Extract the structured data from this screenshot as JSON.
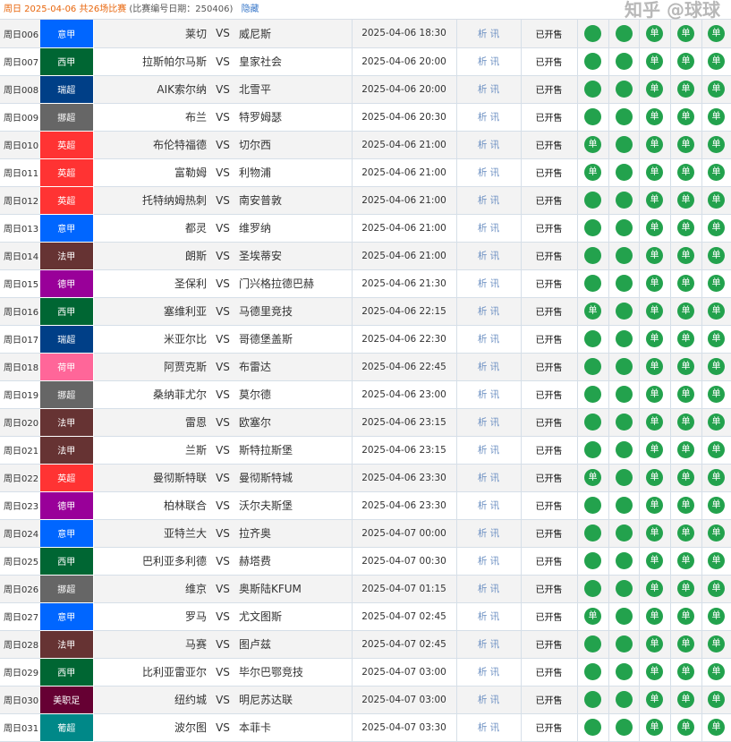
{
  "header": {
    "date_text": "周日 2025-04-06 共26场比赛",
    "issue_text": "(比赛编号日期：250406)",
    "hide_link": "隐藏"
  },
  "vs_label": "VS",
  "analysis_label": "析 讯",
  "status_label": "已开售",
  "single_label": "单",
  "league_colors": {
    "意甲": "#0066ff",
    "西甲": "#006633",
    "瑞超": "#003f87",
    "挪超": "#666666",
    "英超": "#ff3333",
    "法甲": "#663333",
    "德甲": "#990099",
    "荷甲": "#ff6699",
    "美职足": "#660033",
    "葡超": "#008888"
  },
  "circle_color": "#23a24d",
  "matches": [
    {
      "id": "周日006",
      "league": "意甲",
      "home": "莱切",
      "away": "威尼斯",
      "time": "2025-04-06 18:30",
      "single": [
        false,
        false,
        true,
        true,
        true
      ]
    },
    {
      "id": "周日007",
      "league": "西甲",
      "home": "拉斯帕尔马斯",
      "away": "皇家社会",
      "time": "2025-04-06 20:00",
      "single": [
        false,
        false,
        true,
        true,
        true
      ]
    },
    {
      "id": "周日008",
      "league": "瑞超",
      "home": "AIK索尔纳",
      "away": "北雪平",
      "time": "2025-04-06 20:00",
      "single": [
        false,
        false,
        true,
        true,
        true
      ]
    },
    {
      "id": "周日009",
      "league": "挪超",
      "home": "布兰",
      "away": "特罗姆瑟",
      "time": "2025-04-06 20:30",
      "single": [
        false,
        false,
        true,
        true,
        true
      ]
    },
    {
      "id": "周日010",
      "league": "英超",
      "home": "布伦特福德",
      "away": "切尔西",
      "time": "2025-04-06 21:00",
      "single": [
        true,
        false,
        true,
        true,
        true
      ]
    },
    {
      "id": "周日011",
      "league": "英超",
      "home": "富勒姆",
      "away": "利物浦",
      "time": "2025-04-06 21:00",
      "single": [
        true,
        false,
        true,
        true,
        true
      ]
    },
    {
      "id": "周日012",
      "league": "英超",
      "home": "托特纳姆热刺",
      "away": "南安普敦",
      "time": "2025-04-06 21:00",
      "single": [
        false,
        false,
        true,
        true,
        true
      ]
    },
    {
      "id": "周日013",
      "league": "意甲",
      "home": "都灵",
      "away": "维罗纳",
      "time": "2025-04-06 21:00",
      "single": [
        false,
        false,
        true,
        true,
        true
      ]
    },
    {
      "id": "周日014",
      "league": "法甲",
      "home": "朗斯",
      "away": "圣埃蒂安",
      "time": "2025-04-06 21:00",
      "single": [
        false,
        false,
        true,
        true,
        true
      ]
    },
    {
      "id": "周日015",
      "league": "德甲",
      "home": "圣保利",
      "away": "门兴格拉德巴赫",
      "time": "2025-04-06 21:30",
      "single": [
        false,
        false,
        true,
        true,
        true
      ]
    },
    {
      "id": "周日016",
      "league": "西甲",
      "home": "塞维利亚",
      "away": "马德里竞技",
      "time": "2025-04-06 22:15",
      "single": [
        true,
        false,
        true,
        true,
        true
      ]
    },
    {
      "id": "周日017",
      "league": "瑞超",
      "home": "米亚尔比",
      "away": "哥德堡盖斯",
      "time": "2025-04-06 22:30",
      "single": [
        false,
        false,
        true,
        true,
        true
      ]
    },
    {
      "id": "周日018",
      "league": "荷甲",
      "home": "阿贾克斯",
      "away": "布雷达",
      "time": "2025-04-06 22:45",
      "single": [
        false,
        false,
        true,
        true,
        true
      ]
    },
    {
      "id": "周日019",
      "league": "挪超",
      "home": "桑纳菲尤尔",
      "away": "莫尔德",
      "time": "2025-04-06 23:00",
      "single": [
        false,
        false,
        true,
        true,
        true
      ]
    },
    {
      "id": "周日020",
      "league": "法甲",
      "home": "雷恩",
      "away": "欧塞尔",
      "time": "2025-04-06 23:15",
      "single": [
        false,
        false,
        true,
        true,
        true
      ]
    },
    {
      "id": "周日021",
      "league": "法甲",
      "home": "兰斯",
      "away": "斯特拉斯堡",
      "time": "2025-04-06 23:15",
      "single": [
        false,
        false,
        true,
        true,
        true
      ]
    },
    {
      "id": "周日022",
      "league": "英超",
      "home": "曼彻斯特联",
      "away": "曼彻斯特城",
      "time": "2025-04-06 23:30",
      "single": [
        true,
        false,
        true,
        true,
        true
      ]
    },
    {
      "id": "周日023",
      "league": "德甲",
      "home": "柏林联合",
      "away": "沃尔夫斯堡",
      "time": "2025-04-06 23:30",
      "single": [
        false,
        false,
        true,
        true,
        true
      ]
    },
    {
      "id": "周日024",
      "league": "意甲",
      "home": "亚特兰大",
      "away": "拉齐奥",
      "time": "2025-04-07 00:00",
      "single": [
        false,
        false,
        true,
        true,
        true
      ]
    },
    {
      "id": "周日025",
      "league": "西甲",
      "home": "巴利亚多利德",
      "away": "赫塔费",
      "time": "2025-04-07 00:30",
      "single": [
        false,
        false,
        true,
        true,
        true
      ]
    },
    {
      "id": "周日026",
      "league": "挪超",
      "home": "维京",
      "away": "奥斯陆KFUM",
      "time": "2025-04-07 01:15",
      "single": [
        false,
        false,
        true,
        true,
        true
      ]
    },
    {
      "id": "周日027",
      "league": "意甲",
      "home": "罗马",
      "away": "尤文图斯",
      "time": "2025-04-07 02:45",
      "single": [
        true,
        false,
        true,
        true,
        true
      ]
    },
    {
      "id": "周日028",
      "league": "法甲",
      "home": "马赛",
      "away": "图卢兹",
      "time": "2025-04-07 02:45",
      "single": [
        false,
        false,
        true,
        true,
        true
      ]
    },
    {
      "id": "周日029",
      "league": "西甲",
      "home": "比利亚雷亚尔",
      "away": "毕尔巴鄂竞技",
      "time": "2025-04-07 03:00",
      "single": [
        false,
        false,
        true,
        true,
        true
      ]
    },
    {
      "id": "周日030",
      "league": "美职足",
      "home": "纽约城",
      "away": "明尼苏达联",
      "time": "2025-04-07 03:00",
      "single": [
        false,
        false,
        true,
        true,
        true
      ]
    },
    {
      "id": "周日031",
      "league": "葡超",
      "home": "波尔图",
      "away": "本菲卡",
      "time": "2025-04-07 03:30",
      "single": [
        false,
        false,
        true,
        true,
        true
      ]
    }
  ],
  "watermark": "知乎 @球球"
}
